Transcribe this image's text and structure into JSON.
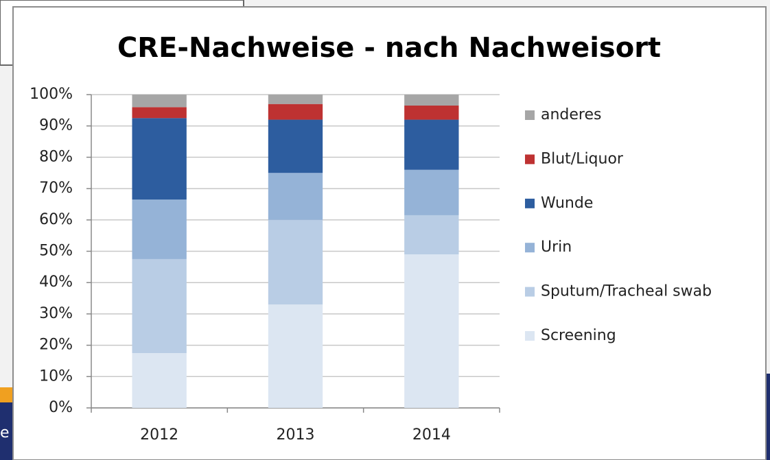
{
  "chart_data": {
    "type": "stacked_bar",
    "title": "CRE-Nachweise - nach Nachweisort",
    "categories": [
      "2012",
      "2013",
      "2014"
    ],
    "series": [
      {
        "name": "Screening",
        "color": "#dce6f2",
        "values": [
          17.5,
          33,
          49
        ]
      },
      {
        "name": "Sputum/Tracheal swab",
        "color": "#b9cde5",
        "values": [
          30,
          27,
          12.5
        ]
      },
      {
        "name": "Urin",
        "color": "#95b3d7",
        "values": [
          19,
          15,
          14.5
        ]
      },
      {
        "name": "Wunde",
        "color": "#2d5d9f",
        "values": [
          26,
          17,
          16
        ]
      },
      {
        "name": "Blut/Liquor",
        "color": "#be3232",
        "values": [
          3.5,
          5,
          4.5
        ]
      },
      {
        "name": "anderes",
        "color": "#a6a6a6",
        "values": [
          4,
          3,
          3.5
        ]
      }
    ],
    "ylim": [
      0,
      100
    ],
    "yticks": [
      {
        "value": 0,
        "label": "0%"
      },
      {
        "value": 10,
        "label": "10%"
      },
      {
        "value": 20,
        "label": "20%"
      },
      {
        "value": 30,
        "label": "30%"
      },
      {
        "value": 40,
        "label": "40%"
      },
      {
        "value": 50,
        "label": "50%"
      },
      {
        "value": 60,
        "label": "60%"
      },
      {
        "value": 70,
        "label": "70%"
      },
      {
        "value": 80,
        "label": "80%"
      },
      {
        "value": 90,
        "label": "90%"
      },
      {
        "value": 100,
        "label": "100%"
      }
    ],
    "grid": true,
    "legend": "right"
  },
  "background_text": "e"
}
